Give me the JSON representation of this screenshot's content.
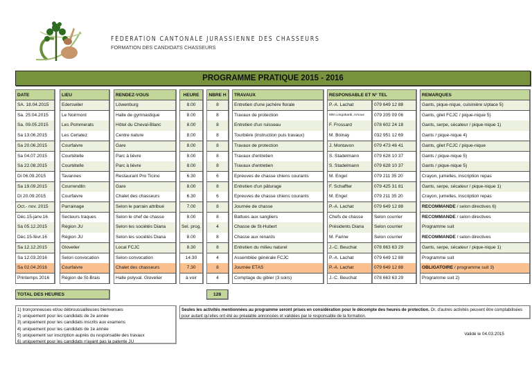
{
  "header": {
    "org": "FEDERATION CANTONALE JURASSIENNE DES CHASSEURS",
    "subtitle": "FORMATION DES CANDIDATS CHASSEURS",
    "logo": "tree-and-hare-logo"
  },
  "title": "PROGRAMME PRATIQUE 2015 - 2016",
  "columns": {
    "date": "DATE",
    "lieu": "LIEU",
    "rdv": "RENDEZ-VOUS",
    "heure": "HEURE",
    "nbre": "NBRE H",
    "travaux": "TRAVAUX",
    "resp": "RESPONSABLE ET N° TEL",
    "rem": "REMARQUES"
  },
  "colors": {
    "title_bar": "#77933c",
    "header": "#c4d79b",
    "row_alt": "#ebf1de",
    "highlight": "#fac090"
  },
  "rows": [
    {
      "date": "SA. 18.04.2015",
      "lieu": "Ederswiler",
      "rdv": "Löwenburg",
      "heure": "8.00",
      "nbre": "8",
      "travaux": "Entretien d'une jachère florale",
      "resp": "P.-A. Lachat",
      "tel": "079 649 12 88",
      "rem_bold": "",
      "rem": "Gants, pique-nique, cuisinière s/place 5)",
      "shade": "g"
    },
    {
      "date": "Sa. 25.04.2015",
      "lieu": "Le Noirmont",
      "rdv": "Halle de gymnastique",
      "heure": "8.00",
      "nbre": "8",
      "travaux": "Travaux de protection",
      "resp": "MM Longobardi, Arnoux",
      "tel": "079 205 09 06",
      "rem_bold": "",
      "rem": "Gants, gilet FCJC / pique-nique 5)",
      "shade": "w"
    },
    {
      "date": "Sa. 09.05.2015",
      "lieu": "Les Pommerats",
      "rdv": "Hôtel du Cheval-Blanc",
      "heure": "8.00",
      "nbre": "8",
      "travaux": "Entretien d'un ruisseau",
      "resp": "F. Frossard",
      "tel": "078 602 24 18",
      "rem_bold": "",
      "rem": "Gants, serpe, sécateur / pique-nique 1)",
      "shade": "g"
    },
    {
      "date": "Sa 13.06.2015",
      "lieu": "Les Cerlatez",
      "rdv": "Centre nature",
      "heure": "8.00",
      "nbre": "8",
      "travaux": "Tourbière (instruction puis travaux)",
      "resp": "M. Boinay",
      "tel": "032 951 12 69",
      "rem_bold": "",
      "rem": "Gants / pique-nique 4)",
      "shade": "w"
    },
    {
      "date": "Sa 20.06.2015",
      "lieu": "Courfaivre",
      "rdv": "Gare",
      "heure": "8.00",
      "nbre": "8",
      "travaux": "Travaux de protection",
      "resp": "J. Montavon",
      "tel": "079 473 46 41",
      "rem_bold": "",
      "rem": "Gants, gilet FCJC / pique-nique",
      "shade": "g"
    },
    {
      "date": "Sa 04.07.2015",
      "lieu": "Courtételle",
      "rdv": "Parc à lièvre",
      "heure": "8.00",
      "nbre": "8",
      "travaux": "Travaux d'entretien",
      "resp": "S. Stadelmann",
      "tel": "079 628 10 37",
      "rem_bold": "",
      "rem": "Gants / pique-nique 5)",
      "shade": "w"
    },
    {
      "date": "Sa 22.08.2015",
      "lieu": "Courtételle",
      "rdv": "Parc à lièvre",
      "heure": "8.00",
      "nbre": "8",
      "travaux": "Travaux d'entretien",
      "resp": "S. Stadelmann",
      "tel": "079 628 10 37",
      "rem_bold": "",
      "rem": "Gants / pique-nique 5)",
      "shade": "g"
    },
    {
      "date": "Di 06.09.2015",
      "lieu": "Tavannes",
      "rdv": "Restaurant Pro Ticino",
      "heure": "6.30",
      "nbre": "6",
      "travaux": "Epreuves de chasse chiens courants",
      "resp": "M. Engel",
      "tel": "079 211 35 20",
      "rem_bold": "",
      "rem": "Crayon, jumelles, inscription repas",
      "shade": "w"
    },
    {
      "date": "Sa 19.09.2015",
      "lieu": "Courrendlin",
      "rdv": "Gare",
      "heure": "8.00",
      "nbre": "8",
      "travaux": "Entretien d'un pâturage",
      "resp": "F. Schaffter",
      "tel": "079 425 31 81",
      "rem_bold": "",
      "rem": "Gants, serpe, sécateur / pique-nique 1)",
      "shade": "g"
    },
    {
      "date": "Di 20.09.2015",
      "lieu": "Courfaivre",
      "rdv": "Chalet des chasseurs",
      "heure": "6.30",
      "nbre": "6",
      "travaux": "Epreuves de chasse chiens courants",
      "resp": "M. Engel",
      "tel": "079 211 35 20",
      "rem_bold": "",
      "rem": "Crayon, jumelles, inscription repas",
      "shade": "w"
    },
    {
      "date": "Oct.- nov. 2015",
      "lieu": "Parrainage",
      "rdv": "Selon le parrain attribué",
      "heure": "7.00",
      "nbre": "8",
      "travaux": "Journée de chasse",
      "resp": "P.-A. Lachat",
      "tel": "079 649 12 88",
      "rem_bold": "RECOMMANDE",
      "rem": " / selon directives 6)",
      "shade": "g"
    },
    {
      "date": "Déc.15-janv.16",
      "lieu": "Secteurs traques",
      "rdv": "Selon le chef de chasse",
      "heure": "8.00",
      "nbre": "8",
      "travaux": "Battues aux sangliers",
      "resp": "Chefs de chasse",
      "tel": "Selon courrier",
      "rem_bold": "RECOMMANDE",
      "rem": " / selon directives",
      "shade": "w"
    },
    {
      "date": "Sa 05.12.2015",
      "lieu": "Région JU",
      "rdv": "Selon les sociétés Diana",
      "heure": "Sel. prog.",
      "nbre": "4",
      "travaux": "Chasse de St-Hubert",
      "resp": "Présidents Diana",
      "tel": "Selon courrier",
      "rem_bold": "",
      "rem": "Programme suit",
      "shade": "g"
    },
    {
      "date": "Déc.15-févr.16",
      "lieu": "Région JU",
      "rdv": "Selon les sociétés Diana",
      "heure": "8.00",
      "nbre": "8",
      "travaux": "Chasse aux renards",
      "resp": "M. Farine",
      "tel": "Selon courrier",
      "rem_bold": "RECOMMANDE",
      "rem": " / selon directives",
      "shade": "w"
    },
    {
      "date": "Sa 12.12.2015",
      "lieu": "Glovelier",
      "rdv": "Local FCJC",
      "heure": "8.30",
      "nbre": "8",
      "travaux": "Entretien du milieu naturel",
      "resp": "J.-C. Beuchat",
      "tel": "078 663 63 29",
      "rem_bold": "",
      "rem": "Gants, serpe, sécateur / pique-nique 1)",
      "shade": "g"
    },
    {
      "date": "Sa 12.03.2016",
      "lieu": "Selon convocation",
      "rdv": "Selon convocation",
      "heure": "14.30",
      "nbre": "4",
      "travaux": "Assemblée générale FCJC",
      "resp": "P.-A. Lachat",
      "tel": "079 649 12 88",
      "rem_bold": "",
      "rem": "Programme suit",
      "shade": "w"
    },
    {
      "date": "Sa 02.04.2016",
      "lieu": "Courfaivre",
      "rdv": "Chalet des chasseurs",
      "heure": "7.30",
      "nbre": "8",
      "travaux": "Journée ETAS",
      "resp": "P.-A. Lachat",
      "tel": "079 649 12 88",
      "rem_bold": "OBLIGATOIRE",
      "rem": " / programme suit 3)",
      "shade": "o"
    },
    {
      "date": "Printemps 2016",
      "lieu": "Région de St-Brais",
      "rdv": "Halle polyval. Glovelier",
      "heure": "à voir",
      "nbre": "4",
      "travaux": "Comptage du gibier (3 soirs)",
      "resp": "J.-C. Beuchat",
      "tel": "078 663 63 29",
      "rem_bold": "",
      "rem": "Programme suit 2)",
      "shade": "w"
    }
  ],
  "total": {
    "label": "TOTAL DES HEURES",
    "value": "128"
  },
  "notes": [
    "1) tronçonneuses et/ou débroussailleuses bienvenues",
    "2) uniquement pour les candidats de 2e année",
    "3) uniquement pour les candidats inscrits aux examens",
    "4) uniquement pour les candidats de 1e année",
    "5) uniquement sur inscription auprès du responsable des travaux",
    "6) uniquement pour les candidats n'ayant pas la patente JU"
  ],
  "notice": {
    "bold": "Seules les activités mentionnées au programme seront prises en considération pour le décompte des heures de protection.",
    "text": " Or, d'autres activités peuvent être comptabilisées pour autant qu'elles ont été au préalable annoncées et validées par le responsable de la formation."
  },
  "validated": "Validé le 04.03.2015"
}
